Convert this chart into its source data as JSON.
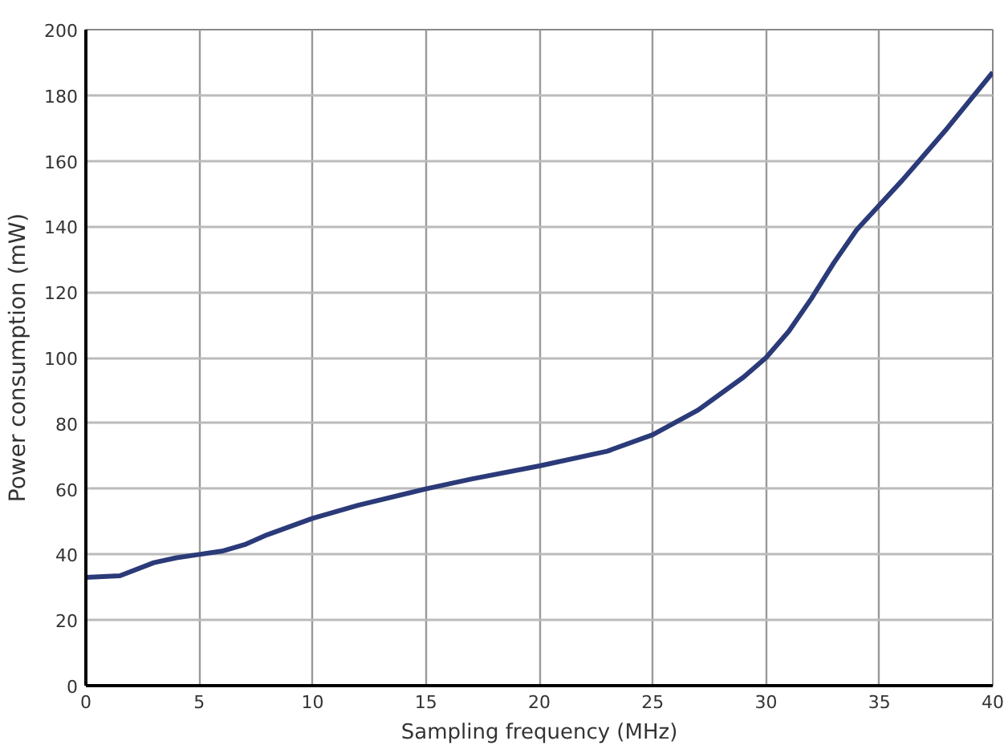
{
  "chart_data": {
    "type": "line",
    "xlabel": "Sampling frequency (MHz)",
    "ylabel": "Power consumption (mW)",
    "xlim": [
      0,
      40
    ],
    "xticks": [
      0,
      5,
      10,
      15,
      20,
      25,
      30,
      35,
      40
    ],
    "ylim": [
      0,
      200
    ],
    "yticks": [
      0,
      20,
      40,
      60,
      80,
      100,
      120,
      140,
      160,
      180,
      200
    ],
    "grid": true,
    "marker": "none",
    "line_style": "solid",
    "series": [
      {
        "color": "#2b3a78",
        "x": [
          0,
          1.5,
          3,
          4,
          5,
          6,
          7,
          8,
          9,
          10,
          12,
          15,
          17,
          20,
          23,
          25,
          27,
          29,
          30,
          31,
          32,
          33,
          34,
          35,
          36,
          37,
          38,
          39,
          40
        ],
        "values": [
          33,
          33.5,
          37.5,
          39,
          40,
          41,
          43,
          46,
          48.5,
          51,
          55,
          60,
          63,
          67,
          71.5,
          76.5,
          84,
          94,
          100,
          108,
          118,
          129,
          139,
          146.5,
          154,
          162,
          170,
          178.5,
          187
        ]
      }
    ]
  }
}
